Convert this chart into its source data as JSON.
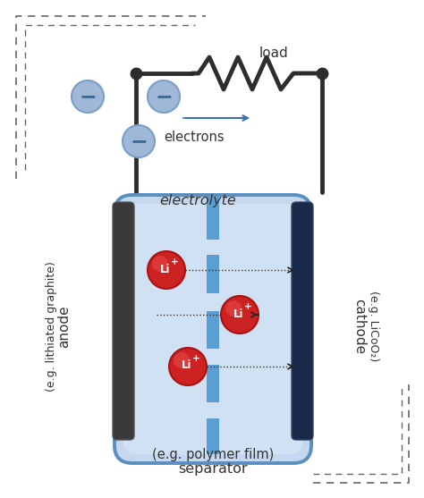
{
  "bg_color": "#ffffff",
  "dashed_box_color": "#666666",
  "wire_color": "#2d2d2d",
  "battery_body_color": "#c5d8f0",
  "battery_border_color": "#5a8fc0",
  "anode_color": "#3a3a3a",
  "cathode_color": "#1a2a4a",
  "separator_color": "#5a9fd4",
  "electron_color": "#a0b8d8",
  "electron_minus_color": "#3a6a9a",
  "li_ball_color1": "#cc2222",
  "li_ball_color2": "#aa1111",
  "electrolyte_label": "electrolyte",
  "electrons_label": "electrons",
  "load_label": "load",
  "separator_label": "separator",
  "separator_sub_label": "(e.g. polymer film)",
  "anode_label": "anode",
  "anode_sub_label": "(e.g. lithiated graphite)",
  "cathode_label": "cathode",
  "cathode_sub_label": "(e.g. LiCoO₂)",
  "figsize": [
    4.74,
    5.57
  ],
  "dpi": 100
}
